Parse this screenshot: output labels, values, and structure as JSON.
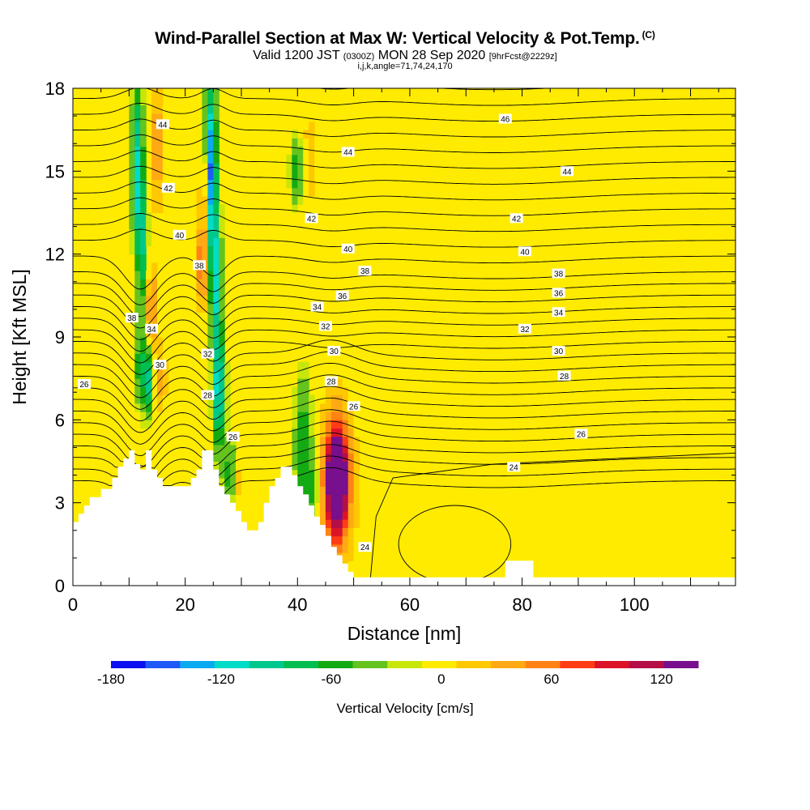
{
  "header": {
    "title": "Wind-Parallel Section at Max W: Vertical Velocity & Pot.Temp.",
    "copyright": "(C)",
    "valid_prefix": "Valid 1200 JST",
    "valid_zulu": "(0300Z)",
    "valid_date": "MON 28 Sep 2020",
    "forecast_info": "[9hrFcst@2229z]",
    "section_params": "i,j,k,angle=71,74,24,170"
  },
  "chart_data": {
    "type": "heatmap",
    "xlabel": "Distance [nm]",
    "ylabel": "Height [Kft MSL]",
    "xlim": [
      0,
      118
    ],
    "ylim": [
      0,
      18
    ],
    "x_ticks": [
      0,
      20,
      40,
      60,
      80,
      100
    ],
    "y_ticks": [
      0,
      3,
      6,
      9,
      12,
      15,
      18
    ],
    "colorbar": {
      "title": "Vertical Velocity [cm/s]",
      "range": [
        -180,
        140
      ],
      "step": 20,
      "tick_labels": [
        -180,
        -120,
        -60,
        0,
        60,
        120
      ],
      "colors": [
        "#0a10f0",
        "#1e5af5",
        "#0aaaf0",
        "#00dcc8",
        "#00c88c",
        "#00be50",
        "#14aa14",
        "#64c31e",
        "#c8e60a",
        "#ffeb00",
        "#ffc800",
        "#ffaa14",
        "#ff8214",
        "#ff3c14",
        "#dc1428",
        "#b40f46",
        "#780f8c"
      ]
    },
    "terrain_profile": {
      "x": [
        0,
        1,
        2,
        3,
        5,
        7,
        8,
        9,
        10,
        11,
        12,
        13,
        14,
        15,
        16,
        17,
        18,
        19,
        20,
        21,
        22,
        23,
        24,
        25,
        26,
        27,
        28,
        29,
        30,
        31,
        32,
        33,
        34,
        35,
        36,
        37,
        38,
        39,
        40,
        41,
        42,
        43,
        44,
        45,
        46,
        47,
        48,
        49,
        50,
        51,
        52,
        53,
        54,
        55,
        56,
        57,
        58,
        59,
        60,
        61,
        62,
        63,
        64,
        65,
        66,
        67,
        68,
        69,
        70,
        71,
        72,
        73,
        74,
        75,
        76,
        77,
        78,
        79,
        80,
        81,
        82,
        83,
        84,
        85,
        86,
        87,
        88,
        89,
        90,
        91,
        92,
        93,
        94,
        95,
        96,
        97,
        98,
        99,
        100,
        101,
        102,
        103,
        104,
        105,
        106,
        107,
        108,
        109,
        110,
        111,
        112,
        113,
        114,
        115,
        116,
        117,
        118
      ],
      "y": [
        2.3,
        2.6,
        2.9,
        3.2,
        3.5,
        3.9,
        4.3,
        4.6,
        4.9,
        4.4,
        4.2,
        4.9,
        4.2,
        3.9,
        3.6,
        3.6,
        3.6,
        3.6,
        3.6,
        3.9,
        4.2,
        4.9,
        4.9,
        4.2,
        3.6,
        3.3,
        3.0,
        2.7,
        2.3,
        2.0,
        2.0,
        2.3,
        3.0,
        3.6,
        3.9,
        4.3,
        4.3,
        4.0,
        3.6,
        3.3,
        2.9,
        2.5,
        2.2,
        1.8,
        1.4,
        1.1,
        0.8,
        0.5,
        0.3,
        0.3,
        0.3,
        0.3,
        0.3,
        0.3,
        0.3,
        0.3,
        0.3,
        0.3,
        0.3,
        0.3,
        0.3,
        0.3,
        0.3,
        0.3,
        0.3,
        0.3,
        0.3,
        0.3,
        0.3,
        0.3,
        0.3,
        0.3,
        0.3,
        0.3,
        0.3,
        0.9,
        0.9,
        0.9,
        0.9,
        0.9,
        0.3,
        0.3,
        0.3,
        0.3,
        0.3,
        0.3,
        0.3,
        0.3,
        0.3,
        0.3,
        0.3,
        0.3,
        0.3,
        0.3,
        0.3,
        0.3,
        0.3,
        0.3,
        0.3,
        0.3,
        0.3,
        0.3,
        0.3,
        0.3,
        0.3,
        0.3,
        0.3,
        0.3,
        0.3,
        0.3,
        0.3,
        0.3,
        0.3,
        0.3,
        0.3,
        0.3,
        0.3
      ]
    },
    "contour_labels": [
      {
        "text": "44",
        "x": 16,
        "y": 16.7
      },
      {
        "text": "42",
        "x": 17,
        "y": 14.4
      },
      {
        "text": "40",
        "x": 19,
        "y": 12.7
      },
      {
        "text": "38",
        "x": 22.5,
        "y": 11.6
      },
      {
        "text": "38",
        "x": 10.5,
        "y": 9.7
      },
      {
        "text": "34",
        "x": 14,
        "y": 9.3
      },
      {
        "text": "30",
        "x": 15.5,
        "y": 8.0
      },
      {
        "text": "32",
        "x": 24,
        "y": 8.4
      },
      {
        "text": "28",
        "x": 24,
        "y": 6.9
      },
      {
        "text": "26",
        "x": 28.5,
        "y": 5.4
      },
      {
        "text": "26",
        "x": 2,
        "y": 7.3
      },
      {
        "text": "44",
        "x": 49,
        "y": 15.7
      },
      {
        "text": "42",
        "x": 42.5,
        "y": 13.3
      },
      {
        "text": "40",
        "x": 49,
        "y": 12.2
      },
      {
        "text": "38",
        "x": 52,
        "y": 11.4
      },
      {
        "text": "36",
        "x": 48,
        "y": 10.5
      },
      {
        "text": "34",
        "x": 43.5,
        "y": 10.1
      },
      {
        "text": "32",
        "x": 45,
        "y": 9.4
      },
      {
        "text": "30",
        "x": 46.5,
        "y": 8.5
      },
      {
        "text": "28",
        "x": 46,
        "y": 7.4
      },
      {
        "text": "26",
        "x": 50,
        "y": 6.5
      },
      {
        "text": "24",
        "x": 52,
        "y": 1.4
      },
      {
        "text": "46",
        "x": 77,
        "y": 16.9
      },
      {
        "text": "44",
        "x": 88,
        "y": 15.0
      },
      {
        "text": "42",
        "x": 79,
        "y": 13.3
      },
      {
        "text": "40",
        "x": 80.5,
        "y": 12.1
      },
      {
        "text": "38",
        "x": 86.5,
        "y": 11.3
      },
      {
        "text": "36",
        "x": 86.5,
        "y": 10.6
      },
      {
        "text": "34",
        "x": 86.5,
        "y": 9.9
      },
      {
        "text": "32",
        "x": 80.5,
        "y": 9.3
      },
      {
        "text": "30",
        "x": 86.5,
        "y": 8.5
      },
      {
        "text": "28",
        "x": 87.5,
        "y": 7.6
      },
      {
        "text": "26",
        "x": 90.5,
        "y": 5.5
      },
      {
        "text": "24",
        "x": 78.5,
        "y": 4.3
      }
    ]
  }
}
